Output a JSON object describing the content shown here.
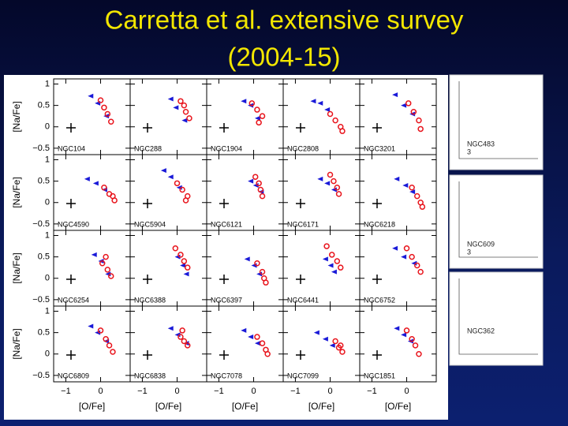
{
  "title": [
    "Carretta et al. extensive survey",
    "(2004-15)"
  ],
  "figure": {
    "xlim": [
      -1.35,
      0.85
    ],
    "ylim": [
      -0.65,
      1.12
    ],
    "xticks": [
      {
        "value": -1,
        "label": "−1"
      },
      0
    ],
    "yticks": [
      {
        "value": -0.5,
        "label": "−0.5"
      },
      0,
      0.5,
      1
    ],
    "x_label": "[O/Fe]",
    "y_label": "[Na/Fe]",
    "red_color": "#e8141c",
    "blue_color": "#1a1ad8",
    "panels": [
      {
        "name": "NGC104",
        "red": [
          [
            0.0,
            0.62
          ],
          [
            0.1,
            0.45
          ],
          [
            0.2,
            0.3
          ],
          [
            0.3,
            0.12
          ]
        ],
        "blue": [
          [
            -0.3,
            0.72
          ],
          [
            -0.1,
            0.55
          ],
          [
            0.15,
            0.25
          ]
        ]
      },
      {
        "name": "NGC288",
        "red": [
          [
            0.1,
            0.6
          ],
          [
            0.25,
            0.35
          ],
          [
            0.35,
            0.2
          ],
          [
            0.2,
            0.5
          ]
        ],
        "blue": [
          [
            -0.2,
            0.65
          ],
          [
            -0.05,
            0.45
          ],
          [
            0.2,
            0.15
          ]
        ]
      },
      {
        "name": "NGC1904",
        "red": [
          [
            -0.05,
            0.55
          ],
          [
            0.1,
            0.4
          ],
          [
            0.25,
            0.25
          ],
          [
            0.15,
            0.1
          ]
        ],
        "blue": [
          [
            -0.3,
            0.6
          ],
          [
            -0.1,
            0.5
          ],
          [
            0.1,
            0.2
          ]
        ]
      },
      {
        "name": "NGC2808",
        "red": [
          [
            0.0,
            0.3
          ],
          [
            0.15,
            0.15
          ],
          [
            0.3,
            0.0
          ],
          [
            0.35,
            -0.1
          ]
        ],
        "blue": [
          [
            -0.5,
            0.6
          ],
          [
            -0.3,
            0.55
          ],
          [
            -0.1,
            0.4
          ]
        ]
      },
      {
        "name": "NGC3201",
        "red": [
          [
            0.05,
            0.55
          ],
          [
            0.2,
            0.35
          ],
          [
            0.35,
            0.15
          ],
          [
            0.4,
            -0.05
          ]
        ],
        "blue": [
          [
            -0.35,
            0.75
          ],
          [
            -0.1,
            0.5
          ],
          [
            0.15,
            0.3
          ]
        ]
      },
      {
        "name": "NGC4590",
        "red": [
          [
            0.1,
            0.35
          ],
          [
            0.25,
            0.2
          ],
          [
            0.4,
            0.05
          ],
          [
            0.35,
            0.15
          ]
        ],
        "blue": [
          [
            -0.4,
            0.55
          ],
          [
            -0.15,
            0.45
          ],
          [
            0.1,
            0.3
          ]
        ]
      },
      {
        "name": "NGC5904",
        "red": [
          [
            0.0,
            0.45
          ],
          [
            0.15,
            0.3
          ],
          [
            0.3,
            0.15
          ],
          [
            0.25,
            0.05
          ]
        ],
        "blue": [
          [
            -0.4,
            0.75
          ],
          [
            -0.2,
            0.6
          ],
          [
            0.05,
            0.35
          ]
        ]
      },
      {
        "name": "NGC6121",
        "red": [
          [
            0.05,
            0.6
          ],
          [
            0.15,
            0.45
          ],
          [
            0.2,
            0.3
          ],
          [
            0.25,
            0.15
          ]
        ],
        "blue": [
          [
            -0.1,
            0.5
          ],
          [
            0.05,
            0.4
          ],
          [
            0.2,
            0.25
          ]
        ]
      },
      {
        "name": "NGC6171",
        "red": [
          [
            0.0,
            0.65
          ],
          [
            0.1,
            0.5
          ],
          [
            0.2,
            0.35
          ],
          [
            0.25,
            0.2
          ]
        ],
        "blue": [
          [
            -0.3,
            0.55
          ],
          [
            -0.1,
            0.45
          ],
          [
            0.1,
            0.3
          ]
        ]
      },
      {
        "name": "NGC6218",
        "red": [
          [
            0.15,
            0.35
          ],
          [
            0.3,
            0.15
          ],
          [
            0.4,
            0.0
          ],
          [
            0.45,
            -0.1
          ]
        ],
        "blue": [
          [
            -0.3,
            0.55
          ],
          [
            -0.05,
            0.4
          ],
          [
            0.15,
            0.25
          ]
        ]
      },
      {
        "name": "NGC6254",
        "red": [
          [
            0.05,
            0.35
          ],
          [
            0.2,
            0.2
          ],
          [
            0.3,
            0.05
          ],
          [
            0.15,
            0.5
          ]
        ],
        "blue": [
          [
            -0.2,
            0.55
          ],
          [
            0.0,
            0.4
          ],
          [
            0.2,
            0.1
          ]
        ]
      },
      {
        "name": "NGC6388",
        "red": [
          [
            -0.05,
            0.7
          ],
          [
            0.1,
            0.55
          ],
          [
            0.2,
            0.4
          ],
          [
            0.3,
            0.25
          ]
        ],
        "blue": [
          [
            0.0,
            0.5
          ],
          [
            0.15,
            0.3
          ],
          [
            0.25,
            0.1
          ]
        ]
      },
      {
        "name": "NGC6397",
        "red": [
          [
            0.1,
            0.35
          ],
          [
            0.25,
            0.15
          ],
          [
            0.3,
            0.0
          ],
          [
            0.35,
            -0.1
          ]
        ],
        "blue": [
          [
            -0.2,
            0.45
          ],
          [
            0.0,
            0.3
          ],
          [
            0.15,
            0.1
          ]
        ]
      },
      {
        "name": "NGC6441",
        "red": [
          [
            -0.1,
            0.75
          ],
          [
            0.05,
            0.55
          ],
          [
            0.2,
            0.4
          ],
          [
            0.3,
            0.25
          ]
        ],
        "blue": [
          [
            -0.15,
            0.45
          ],
          [
            0.0,
            0.3
          ],
          [
            0.1,
            0.15
          ]
        ]
      },
      {
        "name": "NGC6752",
        "red": [
          [
            0.0,
            0.7
          ],
          [
            0.15,
            0.5
          ],
          [
            0.3,
            0.3
          ],
          [
            0.4,
            0.15
          ]
        ],
        "blue": [
          [
            -0.35,
            0.7
          ],
          [
            -0.1,
            0.5
          ],
          [
            0.2,
            0.35
          ]
        ]
      },
      {
        "name": "NGC6809",
        "red": [
          [
            0.0,
            0.55
          ],
          [
            0.15,
            0.35
          ],
          [
            0.25,
            0.2
          ],
          [
            0.35,
            0.05
          ]
        ],
        "blue": [
          [
            -0.3,
            0.65
          ],
          [
            -0.1,
            0.5
          ],
          [
            0.15,
            0.3
          ]
        ]
      },
      {
        "name": "NGC6838",
        "red": [
          [
            0.1,
            0.4
          ],
          [
            0.2,
            0.3
          ],
          [
            0.3,
            0.2
          ],
          [
            0.15,
            0.55
          ]
        ],
        "blue": [
          [
            -0.2,
            0.6
          ],
          [
            0.0,
            0.45
          ],
          [
            0.25,
            0.25
          ]
        ]
      },
      {
        "name": "NGC7078",
        "red": [
          [
            0.1,
            0.4
          ],
          [
            0.25,
            0.25
          ],
          [
            0.35,
            0.1
          ],
          [
            0.4,
            0.0
          ]
        ],
        "blue": [
          [
            -0.3,
            0.55
          ],
          [
            -0.1,
            0.4
          ],
          [
            0.1,
            0.25
          ]
        ]
      },
      {
        "name": "NGC7099",
        "red": [
          [
            0.15,
            0.3
          ],
          [
            0.25,
            0.15
          ],
          [
            0.35,
            0.05
          ],
          [
            0.3,
            0.2
          ]
        ],
        "blue": [
          [
            -0.4,
            0.5
          ],
          [
            -0.15,
            0.35
          ],
          [
            0.05,
            0.2
          ]
        ]
      },
      {
        "name": "NGC1851",
        "red": [
          [
            0.0,
            0.55
          ],
          [
            0.15,
            0.35
          ],
          [
            0.25,
            0.2
          ],
          [
            0.35,
            0.0
          ]
        ],
        "blue": [
          [
            -0.3,
            0.6
          ],
          [
            -0.1,
            0.45
          ],
          [
            0.1,
            0.3
          ]
        ]
      }
    ]
  },
  "side_panels": [
    {
      "label": [
        "NGC483",
        "3"
      ]
    },
    {
      "label": [
        "NGC609",
        "3"
      ]
    },
    {
      "label": [
        "NGC362"
      ]
    }
  ]
}
